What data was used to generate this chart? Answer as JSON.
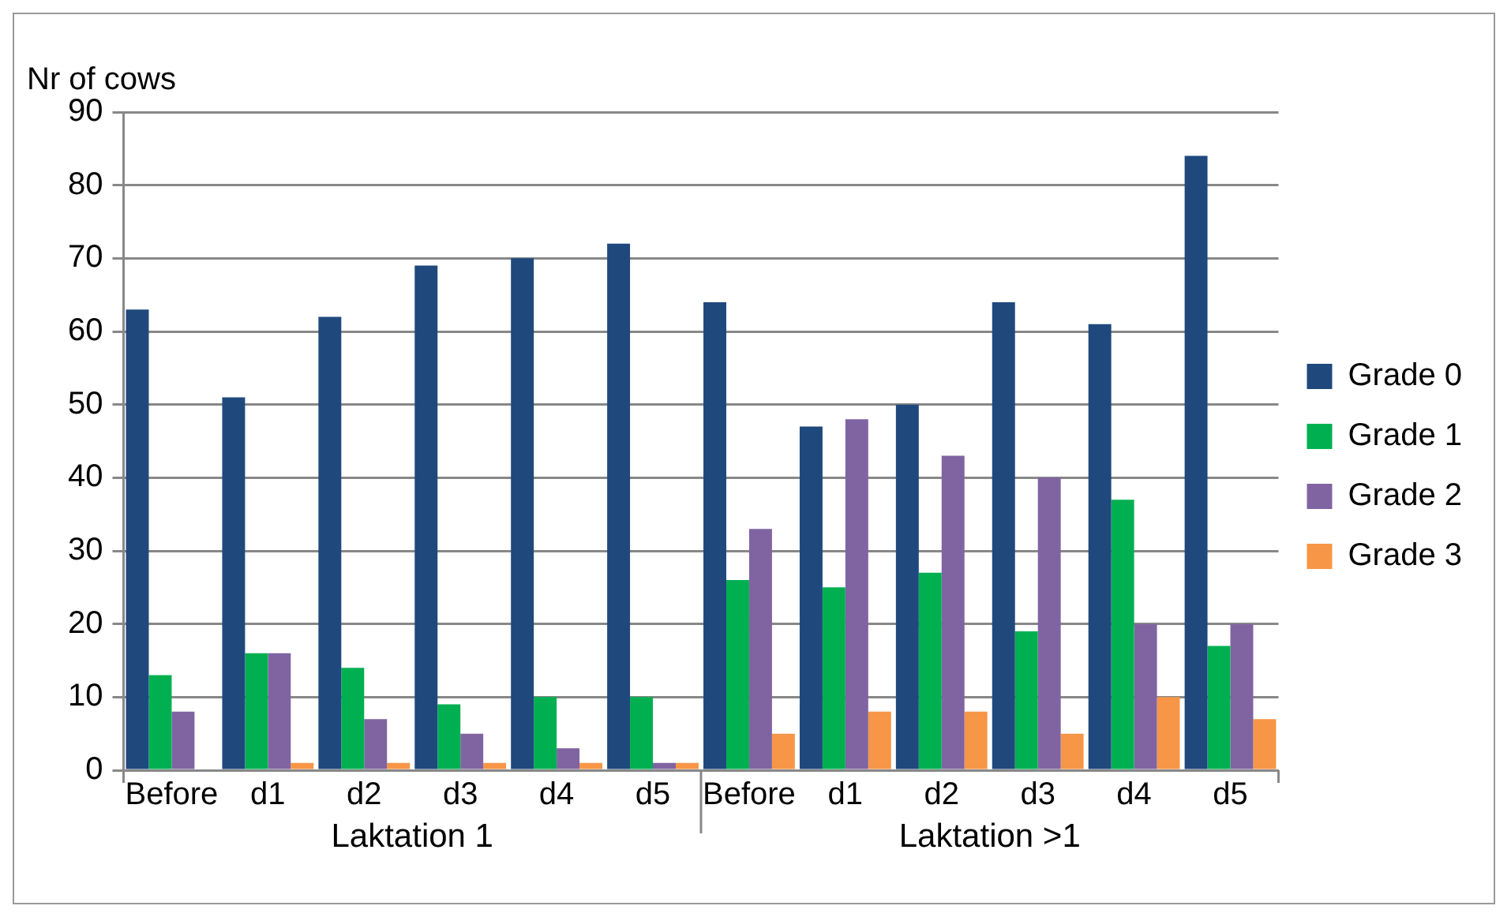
{
  "chart_data": {
    "type": "bar",
    "ylabel": "Nr of cows",
    "categories": [
      "Before",
      "d1",
      "d2",
      "d3",
      "d4",
      "d5",
      "Before",
      "d1",
      "d2",
      "d3",
      "d4",
      "d5"
    ],
    "series": [
      {
        "name": "Grade 0",
        "color": "#1f497d",
        "values": [
          63,
          51,
          62,
          69,
          70,
          72,
          64,
          47,
          50,
          64,
          61,
          84
        ]
      },
      {
        "name": "Grade 1",
        "color": "#00b050",
        "values": [
          13,
          16,
          14,
          9,
          10,
          10,
          26,
          25,
          27,
          19,
          37,
          17
        ]
      },
      {
        "name": "Grade 2",
        "color": "#8064a2",
        "values": [
          8,
          16,
          7,
          5,
          3,
          1,
          33,
          48,
          43,
          40,
          20,
          20
        ]
      },
      {
        "name": "Grade 3",
        "color": "#f79646",
        "values": [
          0,
          1,
          1,
          1,
          1,
          1,
          5,
          8,
          8,
          5,
          10,
          7
        ]
      }
    ],
    "annotations": [
      "Laktation 1",
      "Laktation >1"
    ],
    "ylim": [
      0,
      90
    ],
    "yticks": [
      0,
      10,
      20,
      30,
      40,
      50,
      60,
      70,
      80,
      90
    ],
    "grid": "y",
    "legend": "right"
  }
}
